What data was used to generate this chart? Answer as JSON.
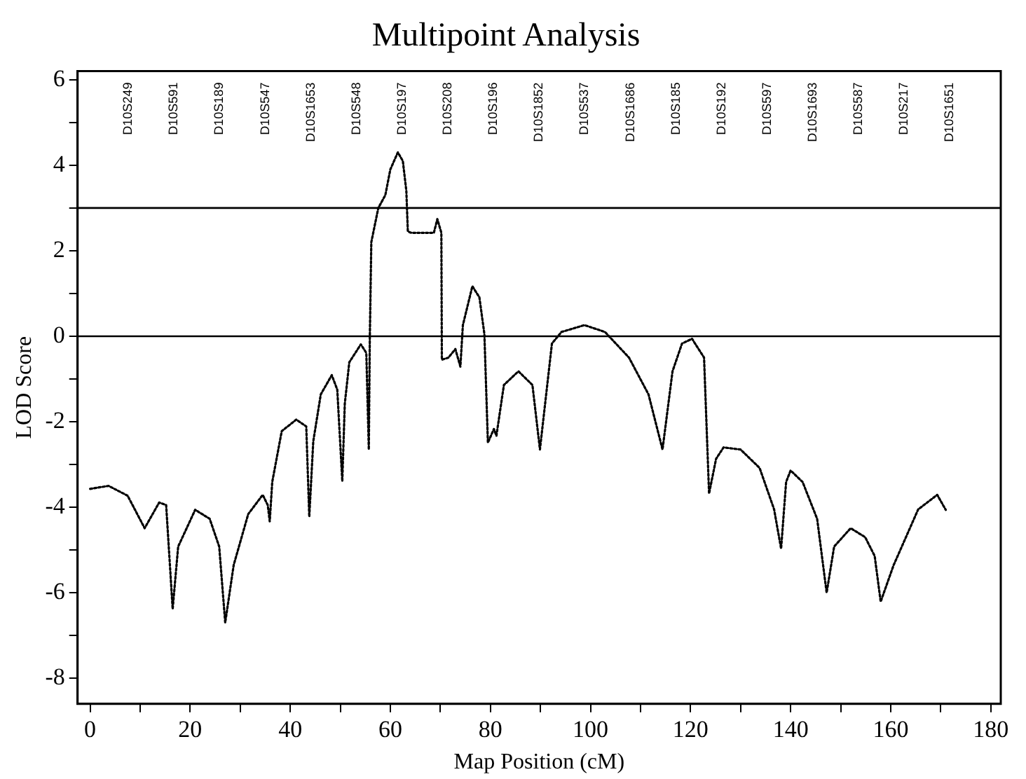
{
  "chart_data": {
    "type": "line",
    "title": "Multipoint Analysis",
    "xlabel": "Map Position (cM)",
    "ylabel": "LOD Score",
    "xlim": [
      -2.5,
      182
    ],
    "ylim": [
      -8.6,
      6.2
    ],
    "xticks": [
      0,
      {
        "value": 10,
        "label": null
      },
      20,
      {
        "value": 30,
        "label": null
      },
      40,
      {
        "value": 50,
        "label": null
      },
      60,
      {
        "value": 70,
        "label": null
      },
      80,
      {
        "value": 90,
        "label": null
      },
      100,
      {
        "value": 110,
        "label": null
      },
      120,
      {
        "value": 130,
        "label": null
      },
      140,
      {
        "value": 150,
        "label": null
      },
      160,
      {
        "value": 170,
        "label": null
      },
      180
    ],
    "yticks": [
      {
        "value": -8,
        "label": "-8"
      },
      {
        "value": -7,
        "label": null
      },
      {
        "value": -6,
        "label": "-6"
      },
      {
        "value": -5,
        "label": null
      },
      {
        "value": -4,
        "label": "-4"
      },
      {
        "value": -3,
        "label": null
      },
      {
        "value": -2,
        "label": "-2"
      },
      {
        "value": -1,
        "label": null
      },
      0,
      {
        "value": 1,
        "label": null
      },
      2,
      {
        "value": 3,
        "label": null
      },
      4,
      {
        "value": 5,
        "label": null
      },
      6
    ],
    "grid": false,
    "legend": false,
    "marker": "none",
    "line_style": "dotted",
    "ref_lines": [
      {
        "axis": "y",
        "value": 3,
        "color": "#000000",
        "line_style": "solid"
      },
      {
        "axis": "y",
        "value": 0,
        "color": "#000000",
        "line_style": "solid"
      }
    ],
    "annotations": [
      "D10S249",
      "D10S591",
      "D10S189",
      "D10S547",
      "D10S1653",
      "D10S548",
      "D10S197",
      "D10S208",
      "D10S196",
      "D10S1852",
      "D10S537",
      "D10S1686",
      "D10S185",
      "D10S192",
      "D10S597",
      "D10S1693",
      "D10S587",
      "D10S217",
      "D10S1651"
    ],
    "x": [
      0,
      3.7,
      7.5,
      10.9,
      13.8,
      15.2,
      16.5,
      17.6,
      21.0,
      23.9,
      25.8,
      27.0,
      28.7,
      31.6,
      34.5,
      35.5,
      35.9,
      36.4,
      38.3,
      41.2,
      43.2,
      43.8,
      44.6,
      46.1,
      48.3,
      49.4,
      50.4,
      50.9,
      51.8,
      54.1,
      55.2,
      55.7,
      55.9,
      56.2,
      57.6,
      59,
      60,
      61.5,
      62.5,
      63.2,
      63.5,
      64.2,
      68.7,
      69.4,
      70.2,
      70.3,
      71.6,
      73.0,
      74.0,
      74.5,
      76.4,
      77.8,
      78.8,
      79.5,
      80.7,
      81.2,
      82.7,
      85.6,
      88.4,
      89.9,
      92.3,
      94.2,
      98.8,
      102.9,
      107.7,
      111.6,
      114.4,
      116.4,
      118.3,
      120.3,
      122.7,
      123.7,
      125.1,
      126.6,
      130.0,
      133.8,
      136.7,
      138.1,
      139.1,
      140.0,
      142.4,
      145.3,
      147.2,
      148.7,
      152.0,
      154.9,
      156.8,
      158.0,
      160.6,
      165.5,
      169.3,
      171.0
    ],
    "series": [
      {
        "color": "#000000",
        "values": [
          -3.57,
          -3.5,
          -3.73,
          -4.49,
          -3.89,
          -3.95,
          -6.38,
          -4.92,
          -4.06,
          -4.27,
          -4.92,
          -6.7,
          -5.35,
          -4.16,
          -3.71,
          -3.95,
          -4.33,
          -3.41,
          -2.22,
          -1.95,
          -2.11,
          -4.22,
          -2.46,
          -1.36,
          -0.91,
          -1.25,
          -3.39,
          -1.58,
          -0.61,
          -0.19,
          -0.39,
          -2.65,
          -0.05,
          2.2,
          3.0,
          3.3,
          3.9,
          4.3,
          4.1,
          3.4,
          2.45,
          2.42,
          2.42,
          2.74,
          2.42,
          -0.55,
          -0.5,
          -0.3,
          -0.71,
          0.26,
          1.17,
          0.91,
          0.05,
          -2.49,
          -2.17,
          -2.33,
          -1.14,
          -0.82,
          -1.14,
          -2.65,
          -0.17,
          0.1,
          0.26,
          0.1,
          -0.5,
          -1.36,
          -2.65,
          -0.82,
          -0.17,
          -0.06,
          -0.5,
          -3.68,
          -2.87,
          -2.6,
          -2.65,
          -3.08,
          -4.05,
          -4.97,
          -3.41,
          -3.14,
          -3.41,
          -4.27,
          -6.0,
          -4.92,
          -4.49,
          -4.7,
          -5.14,
          -6.21,
          -5.35,
          -4.05,
          -3.71,
          -4.06
        ]
      }
    ]
  }
}
